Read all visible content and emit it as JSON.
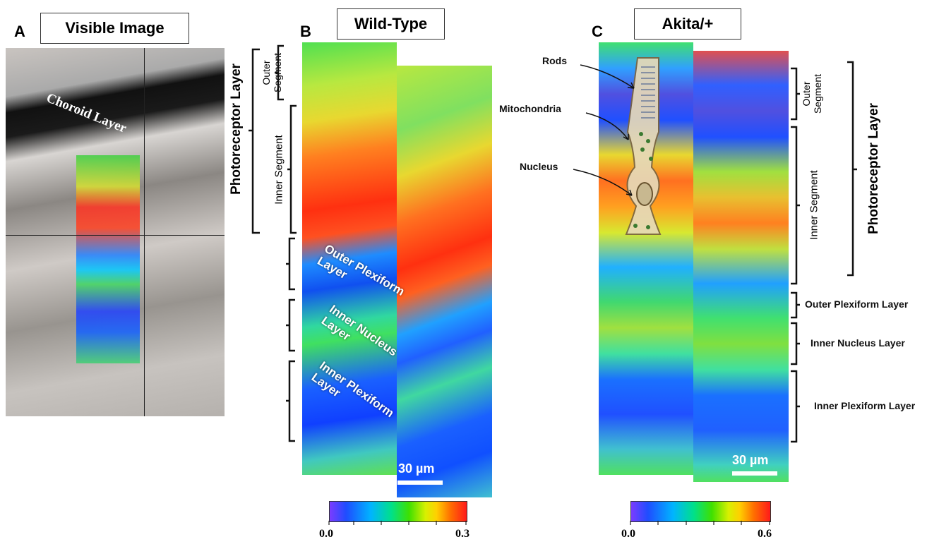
{
  "panel_a": {
    "letter": "A",
    "title": "Visible Image",
    "annotation": "Choroid Layer"
  },
  "left_layers": {
    "group": "Photoreceptor Layer",
    "outer_segment": "Outer Segment",
    "inner_segment": "Inner Segment"
  },
  "panel_b": {
    "letter": "B",
    "title": "Wild-Type",
    "layers": [
      "Outer Plexiform Layer",
      "Inner Nucleus Layer",
      "Inner Plexiform Layer"
    ],
    "scale_bar": "30 µm",
    "colorbar": {
      "min": "0.0",
      "max": "0.3"
    }
  },
  "panel_c": {
    "letter": "C",
    "title": "Akita/+",
    "cell_parts": [
      "Rods",
      "Mitochondria",
      "Nucleus"
    ],
    "scale_bar": "30 µm",
    "colorbar": {
      "min": "0.0",
      "max": "0.6"
    }
  },
  "right_layers": {
    "group": "Photoreceptor Layer",
    "outer_segment": "Outer Segment",
    "inner_segment": "Inner Segment",
    "outer_plexiform": "Outer Plexiform Layer",
    "inner_nucleus": "Inner Nucleus Layer",
    "inner_plexiform": "Inner Plexiform Layer"
  }
}
